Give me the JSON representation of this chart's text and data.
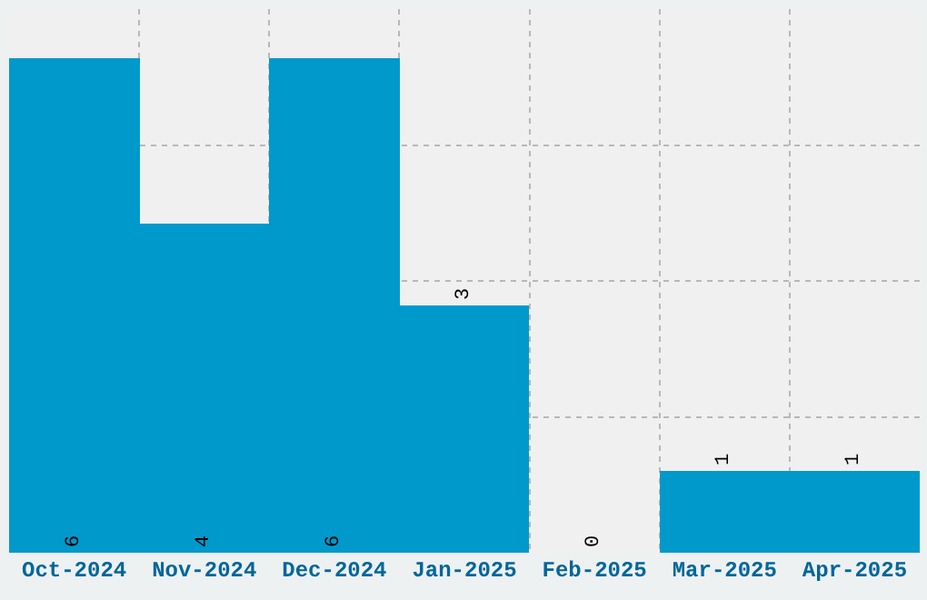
{
  "chart_data": {
    "type": "bar",
    "categories": [
      "Oct-2024",
      "Nov-2024",
      "Dec-2024",
      "Jan-2025",
      "Feb-2025",
      "Mar-2025",
      "Apr-2025"
    ],
    "values": [
      6,
      4,
      6,
      3,
      0,
      1,
      1
    ],
    "color": "#0099cc",
    "ylim": [
      0,
      6.6
    ],
    "yticks": [
      {
        "value": 1.65,
        "label": null
      },
      {
        "value": 3.3,
        "label": null
      },
      {
        "value": 4.95,
        "label": null
      }
    ],
    "tick_labels": "x",
    "grid": true,
    "data_labels": true
  }
}
